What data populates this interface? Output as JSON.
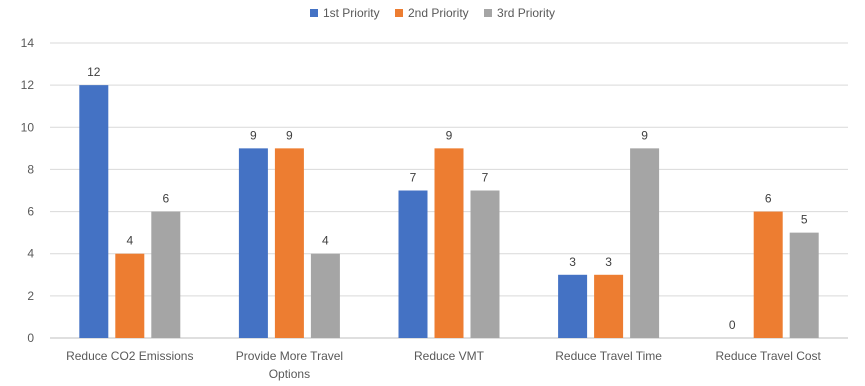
{
  "chart_data": {
    "type": "bar",
    "title": "",
    "xlabel": "",
    "ylabel": "",
    "ylim": [
      0,
      14
    ],
    "yticks": [
      0,
      2,
      4,
      6,
      8,
      10,
      12,
      14
    ],
    "grid": true,
    "legend_position": "top-center",
    "categories": [
      [
        "Reduce CO2 Emissions"
      ],
      [
        "Provide More Travel",
        "Options"
      ],
      [
        "Reduce VMT"
      ],
      [
        "Reduce Travel Time"
      ],
      [
        "Reduce Travel Cost"
      ]
    ],
    "series": [
      {
        "name": "1st Priority",
        "color": "#4472C4",
        "values": [
          12,
          9,
          7,
          3,
          0
        ]
      },
      {
        "name": "2nd Priority",
        "color": "#ED7D31",
        "values": [
          4,
          9,
          9,
          3,
          6
        ]
      },
      {
        "name": "3rd Priority",
        "color": "#A5A5A5",
        "values": [
          6,
          4,
          7,
          9,
          5
        ]
      }
    ]
  }
}
